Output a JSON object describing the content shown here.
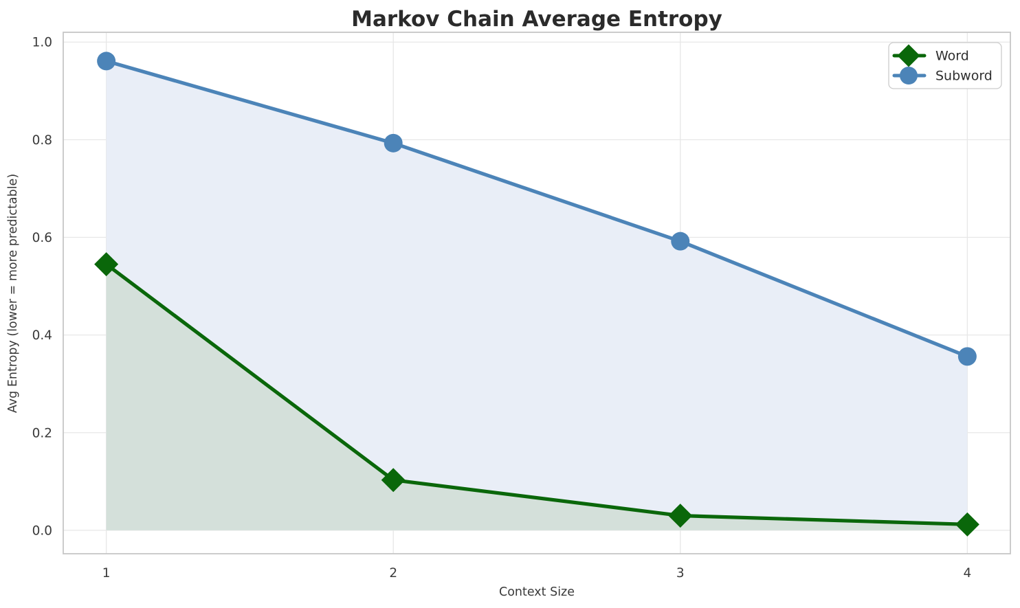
{
  "chart_data": {
    "type": "line",
    "title": "Markov Chain Average Entropy",
    "xlabel": "Context Size",
    "ylabel": "Avg Entropy (lower = more predictable)",
    "x": [
      1,
      2,
      3,
      4
    ],
    "xtick_labels": [
      "1",
      "2",
      "3",
      "4"
    ],
    "ytick_labels": [
      "0.0",
      "0.2",
      "0.4",
      "0.6",
      "0.8",
      "1.0"
    ],
    "yticks": [
      0.0,
      0.2,
      0.4,
      0.6,
      0.8,
      1.0
    ],
    "xlim": [
      0.85,
      4.15
    ],
    "ylim": [
      -0.048,
      1.02
    ],
    "grid": true,
    "legend_position": "upper right",
    "series": [
      {
        "name": "Word",
        "marker": "diamond",
        "color": "#0a670a",
        "area_fill": "#d4e0da",
        "values": [
          0.545,
          0.103,
          0.03,
          0.012
        ]
      },
      {
        "name": "Subword",
        "marker": "circle",
        "color": "#4c84b8",
        "area_fill": "#e9eef7",
        "values": [
          0.961,
          0.793,
          0.592,
          0.356
        ]
      }
    ],
    "style": {
      "grid_color": "#e7e7e7",
      "spine_color": "#c6c6c6",
      "legend_border_color": "#cccccc",
      "legend_bg_color": "#ffffff",
      "title_color": "#2b2b2b",
      "text_color": "#3a3a3a"
    }
  }
}
